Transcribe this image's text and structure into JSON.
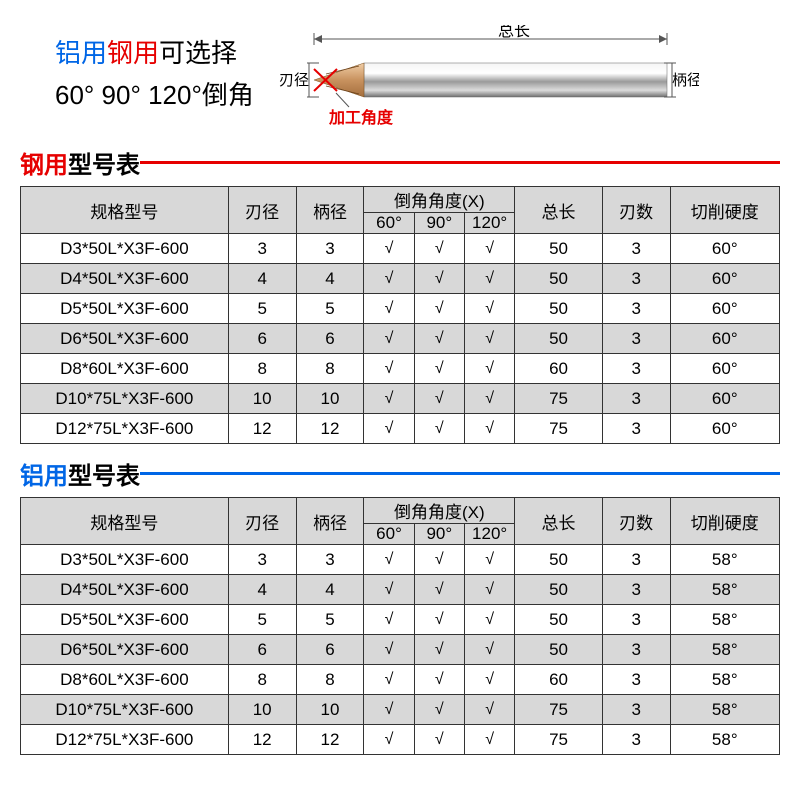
{
  "header": {
    "line1_blue": "铝用",
    "line1_red": "钢用",
    "line1_black": "可选择",
    "line2": "60° 90° 120°倒角"
  },
  "diagram": {
    "total_length_label": "总长",
    "blade_dia_label": "刃径",
    "shank_dia_label": "柄径",
    "machining_angle_label": "加工角度",
    "tip_color": "#d9a36b",
    "shank_color_light": "#e8e8e8",
    "shank_color_dark": "#8a8a8a",
    "dim_line_color": "#555555",
    "x_color": "#e60000"
  },
  "table_headers": {
    "model": "规格型号",
    "blade_dia": "刃径",
    "shank_dia": "柄径",
    "chamfer_angle": "倒角角度(X)",
    "angle_60": "60°",
    "angle_90": "90°",
    "angle_120": "120°",
    "total_len": "总长",
    "flutes": "刃数",
    "hardness": "切削硬度"
  },
  "steel_table": {
    "title_colored": "钢用",
    "title_black": "型号表",
    "title_color": "#e60000",
    "rows": [
      {
        "model": "D3*50L*X3F-600",
        "blade": "3",
        "shank": "3",
        "a60": "√",
        "a90": "√",
        "a120": "√",
        "len": "50",
        "flutes": "3",
        "hard": "60°",
        "alt": false
      },
      {
        "model": "D4*50L*X3F-600",
        "blade": "4",
        "shank": "4",
        "a60": "√",
        "a90": "√",
        "a120": "√",
        "len": "50",
        "flutes": "3",
        "hard": "60°",
        "alt": true
      },
      {
        "model": "D5*50L*X3F-600",
        "blade": "5",
        "shank": "5",
        "a60": "√",
        "a90": "√",
        "a120": "√",
        "len": "50",
        "flutes": "3",
        "hard": "60°",
        "alt": false
      },
      {
        "model": "D6*50L*X3F-600",
        "blade": "6",
        "shank": "6",
        "a60": "√",
        "a90": "√",
        "a120": "√",
        "len": "50",
        "flutes": "3",
        "hard": "60°",
        "alt": true
      },
      {
        "model": "D8*60L*X3F-600",
        "blade": "8",
        "shank": "8",
        "a60": "√",
        "a90": "√",
        "a120": "√",
        "len": "60",
        "flutes": "3",
        "hard": "60°",
        "alt": false
      },
      {
        "model": "D10*75L*X3F-600",
        "blade": "10",
        "shank": "10",
        "a60": "√",
        "a90": "√",
        "a120": "√",
        "len": "75",
        "flutes": "3",
        "hard": "60°",
        "alt": true
      },
      {
        "model": "D12*75L*X3F-600",
        "blade": "12",
        "shank": "12",
        "a60": "√",
        "a90": "√",
        "a120": "√",
        "len": "75",
        "flutes": "3",
        "hard": "60°",
        "alt": false
      }
    ]
  },
  "alu_table": {
    "title_colored": "铝用",
    "title_black": "型号表",
    "title_color": "#0066e6",
    "rows": [
      {
        "model": "D3*50L*X3F-600",
        "blade": "3",
        "shank": "3",
        "a60": "√",
        "a90": "√",
        "a120": "√",
        "len": "50",
        "flutes": "3",
        "hard": "58°",
        "alt": false
      },
      {
        "model": "D4*50L*X3F-600",
        "blade": "4",
        "shank": "4",
        "a60": "√",
        "a90": "√",
        "a120": "√",
        "len": "50",
        "flutes": "3",
        "hard": "58°",
        "alt": true
      },
      {
        "model": "D5*50L*X3F-600",
        "blade": "5",
        "shank": "5",
        "a60": "√",
        "a90": "√",
        "a120": "√",
        "len": "50",
        "flutes": "3",
        "hard": "58°",
        "alt": false
      },
      {
        "model": "D6*50L*X3F-600",
        "blade": "6",
        "shank": "6",
        "a60": "√",
        "a90": "√",
        "a120": "√",
        "len": "50",
        "flutes": "3",
        "hard": "58°",
        "alt": true
      },
      {
        "model": "D8*60L*X3F-600",
        "blade": "8",
        "shank": "8",
        "a60": "√",
        "a90": "√",
        "a120": "√",
        "len": "60",
        "flutes": "3",
        "hard": "58°",
        "alt": false
      },
      {
        "model": "D10*75L*X3F-600",
        "blade": "10",
        "shank": "10",
        "a60": "√",
        "a90": "√",
        "a120": "√",
        "len": "75",
        "flutes": "3",
        "hard": "58°",
        "alt": true
      },
      {
        "model": "D12*75L*X3F-600",
        "blade": "12",
        "shank": "12",
        "a60": "√",
        "a90": "√",
        "a120": "√",
        "len": "75",
        "flutes": "3",
        "hard": "58°",
        "alt": false
      }
    ]
  }
}
